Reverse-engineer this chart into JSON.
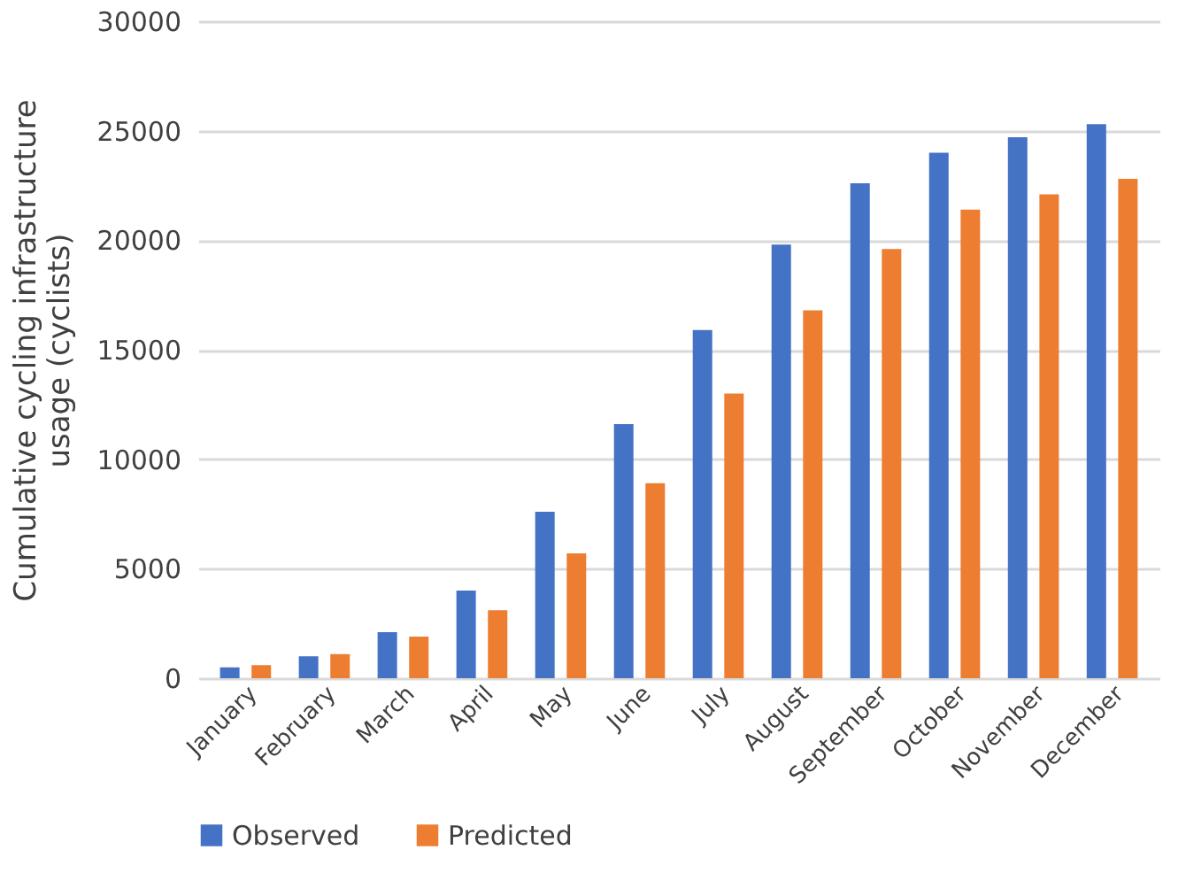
{
  "chart_data": {
    "type": "bar",
    "ylabel": "Cumulative cycling infrastructure usage (cyclists)",
    "categories": [
      "January",
      "February",
      "March",
      "April",
      "May",
      "June",
      "July",
      "August",
      "September",
      "October",
      "November",
      "December"
    ],
    "series": [
      {
        "name": "Observed",
        "color": "#4472c4",
        "values": [
          500,
          1000,
          2100,
          4000,
          7600,
          11600,
          15900,
          19800,
          22600,
          24000,
          24700,
          25300
        ]
      },
      {
        "name": "Predicted",
        "color": "#ed7d31",
        "values": [
          600,
          1100,
          1900,
          3100,
          5700,
          8900,
          13000,
          16800,
          19600,
          21400,
          22100,
          22800
        ]
      }
    ],
    "ylim": [
      0,
      30000
    ],
    "yticks": [
      0,
      5000,
      10000,
      15000,
      20000,
      25000,
      30000
    ],
    "grid": "y",
    "legend": "bottom"
  }
}
